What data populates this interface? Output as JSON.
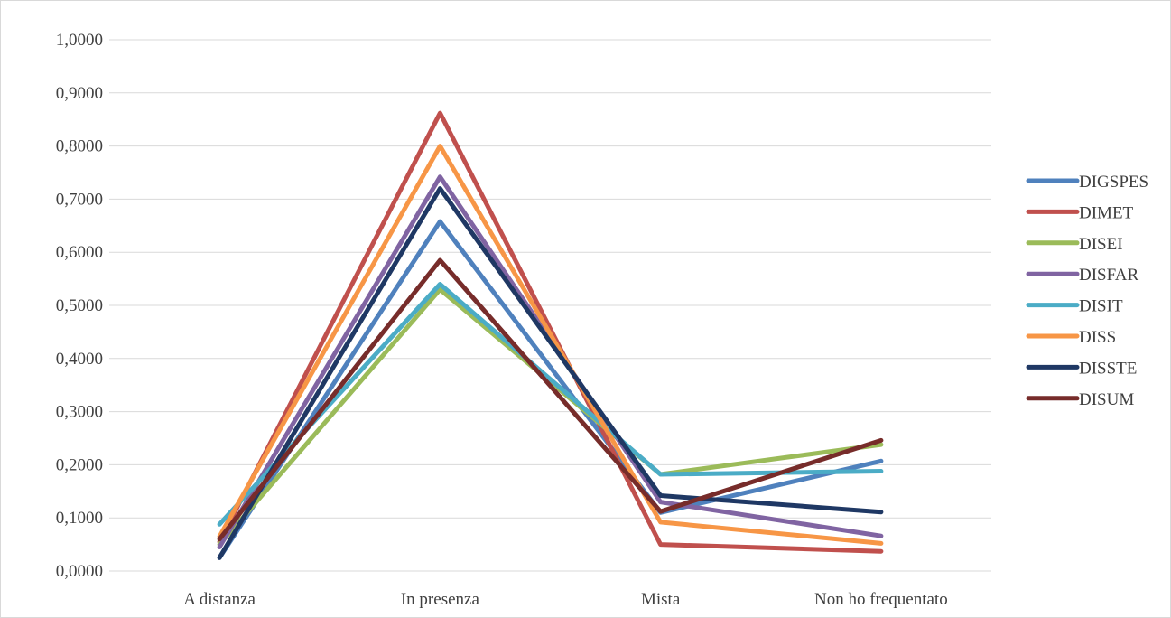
{
  "chart_data": {
    "type": "line",
    "title": "",
    "xlabel": "",
    "ylabel": "",
    "ylim": [
      0,
      1
    ],
    "y_tick_step": 0.1,
    "y_tick_format": "comma-4-decimals",
    "grid": true,
    "legend_position": "right",
    "categories": [
      "A distanza",
      "In presenza",
      "Mista",
      "Non ho frequentato"
    ],
    "series": [
      {
        "name": "DIGSPES",
        "color": "#4F81BD",
        "values": [
          0.025,
          0.658,
          0.11,
          0.207
        ]
      },
      {
        "name": "DIMET",
        "color": "#C0504D",
        "values": [
          0.055,
          0.862,
          0.05,
          0.037
        ]
      },
      {
        "name": "DISEI",
        "color": "#9BBB59",
        "values": [
          0.05,
          0.53,
          0.182,
          0.238
        ]
      },
      {
        "name": "DISFAR",
        "color": "#8064A2",
        "values": [
          0.045,
          0.742,
          0.13,
          0.066
        ]
      },
      {
        "name": "DISIT",
        "color": "#4BACC6",
        "values": [
          0.088,
          0.54,
          0.182,
          0.188
        ]
      },
      {
        "name": "DISS",
        "color": "#F79646",
        "values": [
          0.065,
          0.8,
          0.092,
          0.052
        ]
      },
      {
        "name": "DISSTE",
        "color": "#1F3864",
        "values": [
          0.025,
          0.72,
          0.142,
          0.111
        ]
      },
      {
        "name": "DISUM",
        "color": "#772C2A",
        "values": [
          0.06,
          0.585,
          0.112,
          0.246
        ]
      }
    ]
  }
}
